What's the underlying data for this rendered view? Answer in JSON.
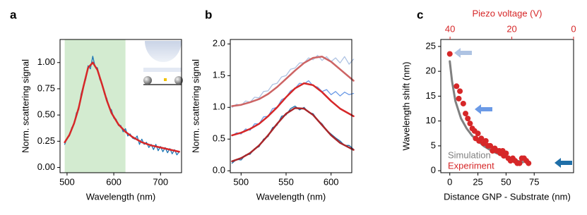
{
  "chart_data": [
    {
      "type": "line",
      "label": "a",
      "xlabel": "Wavelength (nm)",
      "ylabel": "Norm. scattering signal",
      "xlim": [
        485,
        745
      ],
      "xticks": [
        500,
        600,
        700
      ],
      "ylim": [
        -0.05,
        1.22
      ],
      "yticks": [
        {
          "value": 0,
          "label": "0.00"
        },
        {
          "value": 0.25,
          "label": "0.25"
        },
        {
          "value": 0.5,
          "label": "0.50"
        },
        {
          "value": 0.75,
          "label": "0.75"
        },
        {
          "value": 1,
          "label": "1.00"
        }
      ],
      "highlight": [
        495,
        625
      ],
      "highlight_color": "#d3ebd0",
      "series": [
        {
          "color": "#1f77b4",
          "linewidth": 1.3,
          "x": [
            495,
            500,
            505,
            510,
            515,
            520,
            525,
            530,
            535,
            540,
            545,
            550,
            555,
            560,
            565,
            570,
            575,
            580,
            585,
            590,
            595,
            600,
            605,
            610,
            615,
            620,
            625,
            630,
            635,
            640,
            645,
            650,
            655,
            660,
            665,
            670,
            675,
            680,
            685,
            690,
            695,
            700,
            705,
            710,
            715,
            720,
            725,
            730,
            735,
            740
          ],
          "values": [
            0.22,
            0.28,
            0.3,
            0.38,
            0.41,
            0.52,
            0.55,
            0.7,
            0.78,
            0.84,
            0.97,
            0.94,
            1.06,
            0.96,
            0.95,
            0.84,
            0.8,
            0.7,
            0.66,
            0.57,
            0.55,
            0.47,
            0.46,
            0.4,
            0.4,
            0.34,
            0.37,
            0.3,
            0.32,
            0.28,
            0.27,
            0.3,
            0.22,
            0.27,
            0.22,
            0.24,
            0.19,
            0.22,
            0.17,
            0.22,
            0.16,
            0.2,
            0.15,
            0.19,
            0.14,
            0.18,
            0.13,
            0.17,
            0.12,
            0.15
          ]
        },
        {
          "color": "#d62728",
          "linewidth": 2.5,
          "x": [
            495,
            505,
            515,
            525,
            535,
            545,
            555,
            565,
            575,
            585,
            595,
            610,
            625,
            640,
            660,
            680,
            700,
            720,
            740
          ],
          "values": [
            0.24,
            0.31,
            0.42,
            0.57,
            0.77,
            0.95,
            1.0,
            0.93,
            0.79,
            0.64,
            0.52,
            0.41,
            0.34,
            0.29,
            0.24,
            0.21,
            0.19,
            0.17,
            0.15
          ]
        }
      ]
    },
    {
      "type": "line",
      "label": "b",
      "xlabel": "Wavelength (nm)",
      "ylabel": "Norm. scattering signal",
      "xlim": [
        488,
        623
      ],
      "xticks": [
        500,
        550,
        600
      ],
      "ylim": [
        -0.03,
        2.07
      ],
      "yticks": [
        {
          "value": 0,
          "label": "0.0"
        },
        0.5,
        {
          "value": 1,
          "label": "1.0"
        },
        1.5,
        {
          "value": 2,
          "label": "2.0"
        }
      ],
      "series": [
        {
          "color": "#aec3e3",
          "linewidth": 1.3,
          "x": [
            490,
            495,
            500,
            505,
            510,
            515,
            520,
            525,
            530,
            535,
            540,
            545,
            550,
            555,
            560,
            565,
            570,
            575,
            580,
            585,
            590,
            595,
            600,
            605,
            610,
            615,
            620,
            625
          ],
          "values": [
            1.0,
            1.05,
            1.03,
            1.1,
            1.08,
            1.16,
            1.15,
            1.25,
            1.26,
            1.36,
            1.38,
            1.48,
            1.5,
            1.6,
            1.62,
            1.7,
            1.7,
            1.78,
            1.75,
            1.82,
            1.74,
            1.8,
            1.72,
            1.78,
            1.7,
            1.8,
            1.68,
            1.76
          ]
        },
        {
          "color": "#6b9ae6",
          "linewidth": 1.3,
          "x": [
            490,
            495,
            500,
            505,
            510,
            515,
            520,
            525,
            530,
            535,
            540,
            545,
            550,
            555,
            560,
            565,
            570,
            575,
            580,
            585,
            590,
            595,
            600,
            605,
            610,
            615,
            620,
            625
          ],
          "values": [
            0.55,
            0.6,
            0.58,
            0.66,
            0.64,
            0.74,
            0.74,
            0.85,
            0.86,
            0.98,
            1.0,
            1.12,
            1.16,
            1.26,
            1.3,
            1.38,
            1.37,
            1.42,
            1.34,
            1.32,
            1.25,
            1.28,
            1.2,
            1.25,
            1.18,
            1.24,
            1.2,
            1.22
          ]
        },
        {
          "color": "#1f6fa8",
          "linewidth": 1.3,
          "x": [
            490,
            495,
            500,
            505,
            510,
            515,
            520,
            525,
            530,
            535,
            540,
            545,
            550,
            555,
            560,
            565,
            570,
            575,
            580,
            585,
            590,
            595,
            600,
            605,
            610,
            615,
            620,
            625
          ],
          "values": [
            0.12,
            0.18,
            0.17,
            0.25,
            0.26,
            0.35,
            0.38,
            0.5,
            0.54,
            0.68,
            0.72,
            0.86,
            0.88,
            0.98,
            1.02,
            0.96,
            1.0,
            0.92,
            0.9,
            0.8,
            0.74,
            0.64,
            0.58,
            0.52,
            0.47,
            0.4,
            0.4,
            0.34
          ]
        },
        {
          "color": "#cd6464",
          "linewidth": 2.5,
          "x": [
            490,
            500,
            510,
            520,
            530,
            540,
            550,
            560,
            570,
            580,
            590,
            600,
            610,
            625
          ],
          "values": [
            1.02,
            1.04,
            1.08,
            1.13,
            1.21,
            1.32,
            1.45,
            1.58,
            1.7,
            1.78,
            1.8,
            1.72,
            1.6,
            1.42
          ]
        },
        {
          "color": "#d62728",
          "linewidth": 2.5,
          "x": [
            490,
            500,
            510,
            520,
            530,
            540,
            550,
            560,
            570,
            580,
            590,
            600,
            610,
            625
          ],
          "values": [
            0.56,
            0.6,
            0.66,
            0.74,
            0.86,
            1.0,
            1.16,
            1.3,
            1.38,
            1.35,
            1.24,
            1.1,
            0.98,
            0.86
          ]
        },
        {
          "color": "#a8262a",
          "linewidth": 2.5,
          "x": [
            490,
            500,
            510,
            520,
            530,
            540,
            550,
            560,
            570,
            580,
            590,
            600,
            610,
            625
          ],
          "values": [
            0.15,
            0.2,
            0.28,
            0.4,
            0.56,
            0.74,
            0.9,
            0.99,
            0.98,
            0.88,
            0.72,
            0.56,
            0.44,
            0.33
          ]
        }
      ]
    },
    {
      "type": "scatter",
      "label": "c",
      "xlabel": "Distance GNP - Substrate (nm)",
      "ylabel": "Wavelength shift (nm)",
      "xlim": [
        -8,
        110
      ],
      "xticks": [
        0,
        25,
        50,
        75
      ],
      "ylim": [
        -0.4,
        26.4
      ],
      "yticks": [
        0,
        5,
        10,
        15,
        20,
        25
      ],
      "x2label": "Piezo voltage (V)",
      "x2lim": [
        43,
        0
      ],
      "x2ticks": [
        40,
        20,
        0
      ],
      "x2color": "#d62728",
      "legend": "lower left",
      "series": [
        {
          "name": "Simulation",
          "color": "#808080",
          "mode": "line",
          "linewidth": 3,
          "x": [
            0,
            2,
            5,
            10,
            15,
            20,
            25,
            30,
            35,
            40,
            45,
            50,
            55,
            60,
            65
          ],
          "values": [
            22,
            18,
            14,
            10.5,
            8.5,
            7,
            6,
            5,
            4.3,
            3.7,
            3.2,
            2.7,
            2.3,
            2,
            1.7
          ]
        },
        {
          "name": "Experiment",
          "color": "#d62728",
          "mode": "markers",
          "x": [
            0,
            6,
            9,
            8,
            12,
            14,
            16,
            18,
            20,
            22,
            23,
            25,
            26,
            28,
            30,
            32,
            34,
            36,
            38,
            40,
            42,
            44,
            45,
            47,
            48,
            50,
            52,
            54,
            56,
            58,
            60,
            62,
            64,
            66,
            68,
            70
          ],
          "values": [
            23.5,
            17,
            16,
            14.5,
            13.5,
            11.5,
            10.5,
            9.5,
            8.5,
            8,
            6.5,
            7.5,
            6,
            6.5,
            5.5,
            6,
            5,
            5,
            4,
            4.5,
            4,
            4,
            3.5,
            4,
            3,
            3.5,
            2.5,
            2,
            2.5,
            2,
            1.5,
            1.5,
            2.5,
            2.5,
            2,
            1.5
          ]
        }
      ]
    }
  ]
}
